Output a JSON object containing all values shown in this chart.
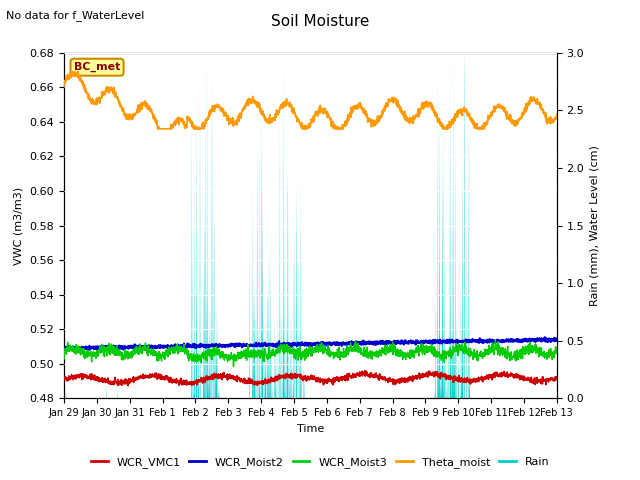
{
  "title": "Soil Moisture",
  "xlabel": "Time",
  "ylabel_left": "VWC (m3/m3)",
  "ylabel_right": "Rain (mm), Water Level (cm)",
  "annotation": "No data for f_WaterLevel",
  "bc_met_label": "BC_met",
  "ylim_left": [
    0.48,
    0.68
  ],
  "ylim_right": [
    0.0,
    3.0
  ],
  "yticks_left": [
    0.48,
    0.5,
    0.52,
    0.54,
    0.56,
    0.58,
    0.6,
    0.62,
    0.64,
    0.66,
    0.68
  ],
  "yticks_right": [
    0.0,
    0.5,
    1.0,
    1.5,
    2.0,
    2.5,
    3.0
  ],
  "colors": {
    "WCR_VMC1": "#cc0000",
    "WCR_Moist2": "#0000cc",
    "WCR_Moist3": "#00cc00",
    "Theta_moist": "#ff9900",
    "Rain": "#00cccc"
  },
  "bg_color": "#e0e0e0",
  "legend_labels": [
    "WCR_VMC1",
    "WCR_Moist2",
    "WCR_Moist3",
    "Theta_moist",
    "Rain"
  ],
  "xtick_labels": [
    "Jan 29",
    "Jan 30",
    "Jan 31",
    "Feb 1",
    "Feb 2",
    "Feb 3",
    "Feb 4",
    "Feb 5",
    "Feb 6",
    "Feb 7",
    "Feb 8",
    "Feb 9",
    "Feb 10",
    "Feb 11",
    "Feb 12",
    "Feb 13"
  ],
  "n_points": 2016
}
